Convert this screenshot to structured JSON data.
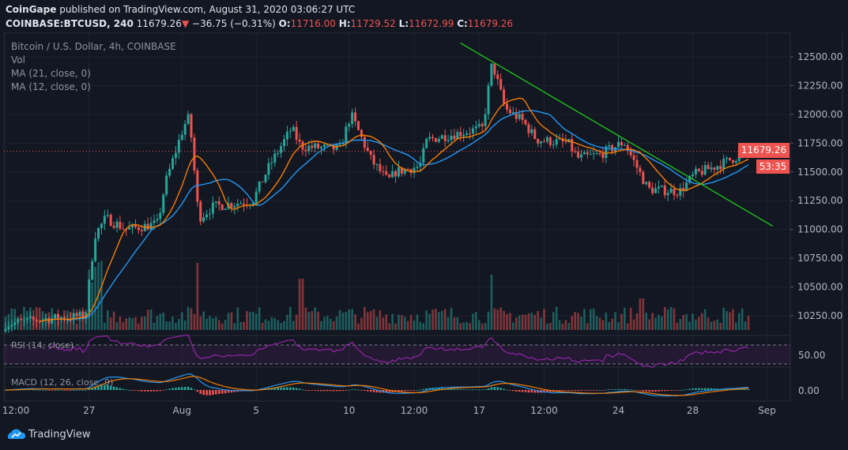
{
  "header": {
    "publisher": "CoinGape",
    "published_text": "published on TradingView.com, August 31, 2020 03:06:27 UTC",
    "symbol": "COINBASE:BTCUSD, 240",
    "last": "11679.26",
    "change": "−36.75 (−0.31%)",
    "o_label": "O:",
    "o": "11716.00",
    "h_label": "H:",
    "h": "11729.52",
    "l_label": "L:",
    "l": "11672.99",
    "c_label": "C:",
    "c": "11679.26"
  },
  "legend": {
    "title": "Bitcoin / U.S. Dollar, 4h, COINBASE",
    "vol": "Vol",
    "ma21": "MA (21, close, 0)",
    "ma12": "MA (12, close, 0)"
  },
  "indicators": {
    "rsi_label": "RSI (14, close)",
    "rsi_tick": "50.00",
    "macd_label": "MACD (12, 26, close, 9)",
    "macd_tick": "0.00"
  },
  "price_tag": {
    "price": "11679.26",
    "countdown": "53:35"
  },
  "footer": {
    "brand": "TradingView"
  },
  "colors": {
    "up": "#26a69a",
    "down": "#ef5350",
    "ma21": "#2196f3",
    "ma12": "#f57c00",
    "trendline": "#1fc91f",
    "rsi": "#9c27b0"
  },
  "chart_data": {
    "type": "candlestick",
    "title": "Bitcoin / U.S. Dollar, 4h, COINBASE",
    "interval": "4h",
    "ylim": [
      10150,
      12650
    ],
    "y_ticks": [
      "12500.00",
      "12250.00",
      "12000.00",
      "11750.00",
      "11500.00",
      "11250.00",
      "11000.00",
      "10750.00",
      "10500.00",
      "10250.00"
    ],
    "x_ticks": [
      {
        "label": "12:00",
        "day": 0
      },
      {
        "label": "27",
        "day": 4.5
      },
      {
        "label": "Aug",
        "day": 9.5
      },
      {
        "label": "5",
        "day": 13.5
      },
      {
        "label": "10",
        "day": 18.5
      },
      {
        "label": "12:00",
        "day": 22
      },
      {
        "label": "17",
        "day": 25.5
      },
      {
        "label": "12:00",
        "day": 29
      },
      {
        "label": "24",
        "day": 33
      },
      {
        "label": "28",
        "day": 37
      },
      {
        "label": "Sep",
        "day": 41
      }
    ],
    "close_path_day_price": [
      [
        0,
        10180
      ],
      [
        2,
        10220
      ],
      [
        4.3,
        10250
      ],
      [
        4.8,
        10950
      ],
      [
        5.4,
        11100
      ],
      [
        6.5,
        11000
      ],
      [
        8.2,
        11050
      ],
      [
        8.6,
        11400
      ],
      [
        9.6,
        11900
      ],
      [
        9.9,
        11980
      ],
      [
        10.4,
        11100
      ],
      [
        11.2,
        11200
      ],
      [
        13.3,
        11250
      ],
      [
        14.2,
        11550
      ],
      [
        15.4,
        11880
      ],
      [
        15.9,
        11720
      ],
      [
        18,
        11700
      ],
      [
        18.6,
        12000
      ],
      [
        19.7,
        11600
      ],
      [
        20.6,
        11420
      ],
      [
        21,
        11500
      ],
      [
        22.3,
        11550
      ],
      [
        22.7,
        11780
      ],
      [
        25.7,
        11880
      ],
      [
        26.2,
        12450
      ],
      [
        26.9,
        12050
      ],
      [
        27.8,
        11950
      ],
      [
        28.6,
        11780
      ],
      [
        30.3,
        11750
      ],
      [
        30.8,
        11620
      ],
      [
        32,
        11650
      ],
      [
        33.3,
        11760
      ],
      [
        34.6,
        11350
      ],
      [
        36.3,
        11330
      ],
      [
        37.1,
        11480
      ],
      [
        38.4,
        11560
      ],
      [
        40,
        11679
      ]
    ],
    "trendline": [
      [
        24.5,
        12620
      ],
      [
        41.3,
        11030
      ]
    ],
    "rsi_levels": [
      70,
      30
    ],
    "series": [
      {
        "name": "MA (21, close, 0)"
      },
      {
        "name": "MA (12, close, 0)"
      },
      {
        "name": "Vol"
      }
    ]
  }
}
